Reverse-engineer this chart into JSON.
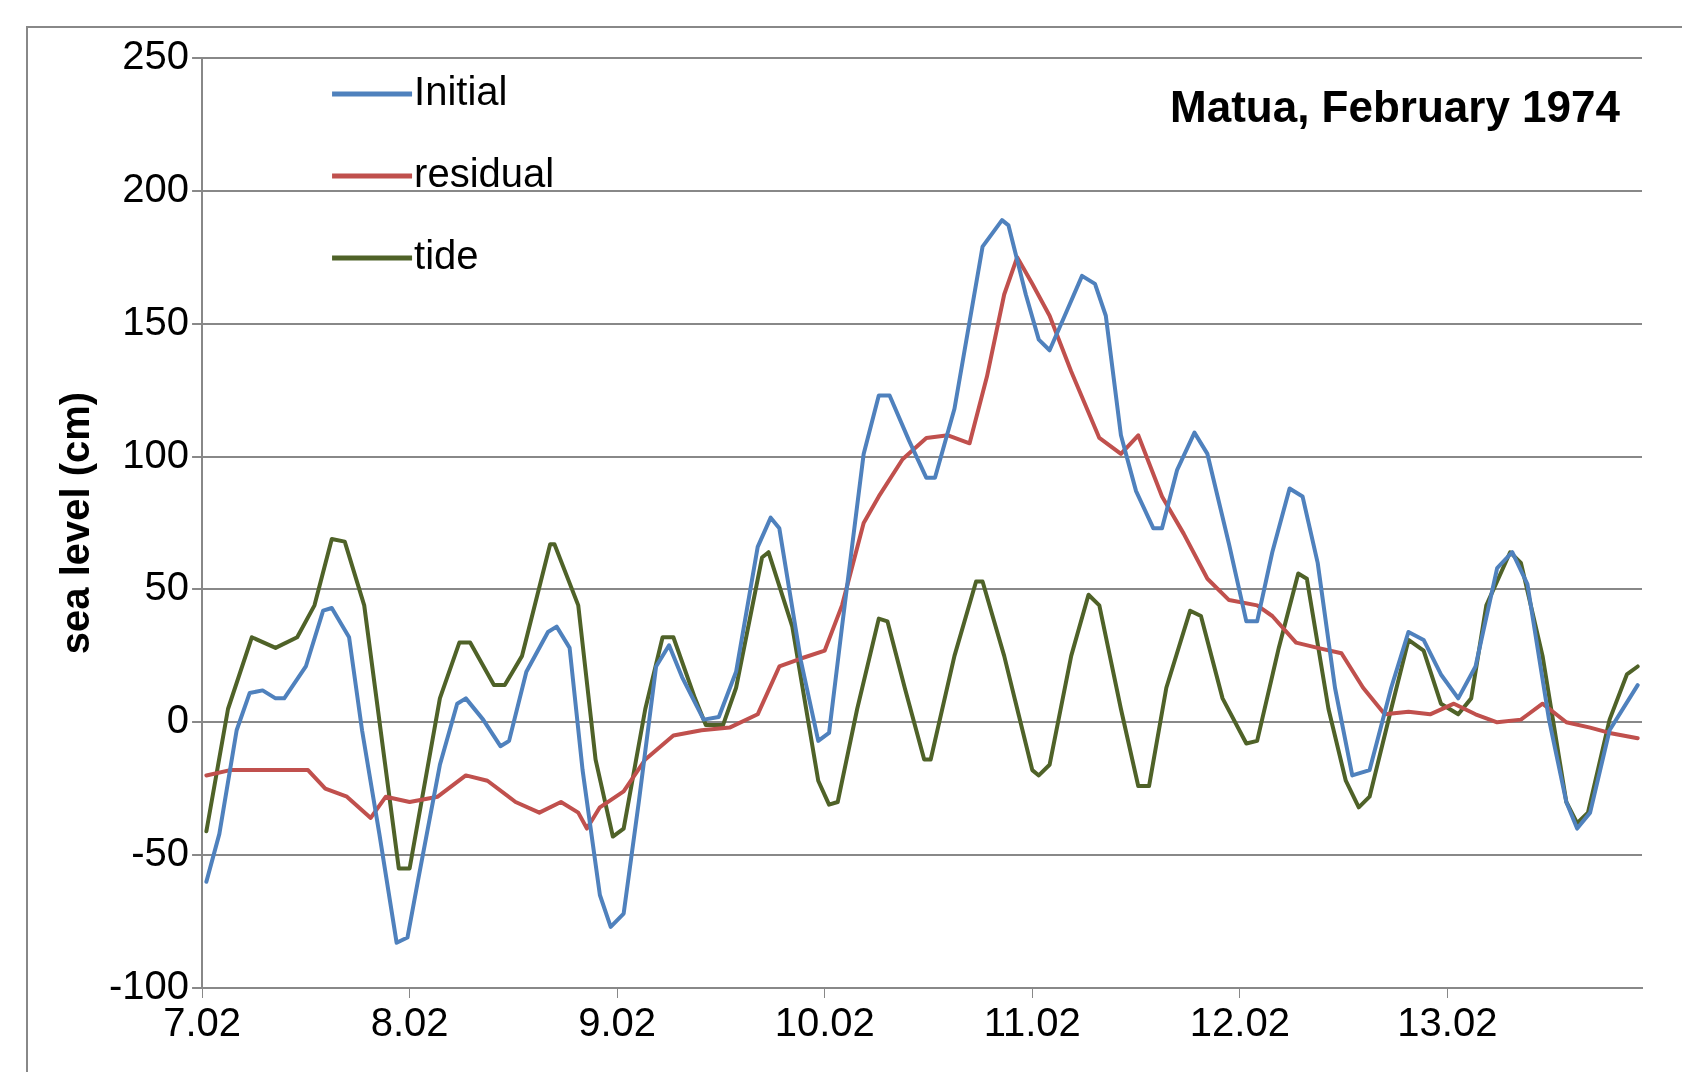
{
  "chart_data": {
    "type": "line",
    "title": "Matua, February 1974",
    "ylabel": "sea level (cm)",
    "ylim": [
      -100,
      250
    ],
    "yticks": [
      -100,
      -50,
      0,
      50,
      100,
      150,
      200,
      250
    ],
    "xlim": [
      "1974-02-07T00:00",
      "1974-02-13T22:30"
    ],
    "xticks": [
      {
        "value": "1974-02-07",
        "label": "7.02"
      },
      {
        "value": "1974-02-08",
        "label": "8.02"
      },
      {
        "value": "1974-02-09",
        "label": "9.02"
      },
      {
        "value": "1974-02-10",
        "label": "10.02"
      },
      {
        "value": "1974-02-11",
        "label": "11.02"
      },
      {
        "value": "1974-02-12",
        "label": "12.02"
      },
      {
        "value": "1974-02-13",
        "label": "13.02"
      }
    ],
    "grid": "y",
    "legend": "top left",
    "marker": "none",
    "line_style": "solid",
    "series": [
      {
        "name": "Initial",
        "color": "#4f81bd",
        "x": [
          "1974-02-07T00:30",
          "1974-02-07T02:00",
          "1974-02-07T04:00",
          "1974-02-07T05:30",
          "1974-02-07T07:00",
          "1974-02-07T08:30",
          "1974-02-07T09:30",
          "1974-02-07T12:00",
          "1974-02-07T14:00",
          "1974-02-07T15:00",
          "1974-02-07T17:00",
          "1974-02-07T18:30",
          "1974-02-07T20:30",
          "1974-02-07T22:30",
          "1974-02-07T23:45",
          "1974-02-08T01:00",
          "1974-02-08T03:30",
          "1974-02-08T05:30",
          "1974-02-08T06:30",
          "1974-02-08T08:30",
          "1974-02-08T10:30",
          "1974-02-08T11:30",
          "1974-02-08T13:30",
          "1974-02-08T16:00",
          "1974-02-08T17:00",
          "1974-02-08T18:30",
          "1974-02-08T20:00",
          "1974-02-08T22:00",
          "1974-02-08T23:15",
          "1974-02-09T00:45",
          "1974-02-09T02:30",
          "1974-02-09T04:30",
          "1974-02-09T06:00",
          "1974-02-09T07:30",
          "1974-02-09T10:00",
          "1974-02-09T11:45",
          "1974-02-09T13:45",
          "1974-02-09T16:15",
          "1974-02-09T17:45",
          "1974-02-09T18:45",
          "1974-02-09T21:15",
          "1974-02-09T23:15",
          "1974-02-10T00:30",
          "1974-02-10T02:00",
          "1974-02-10T04:30",
          "1974-02-10T06:15",
          "1974-02-10T07:30",
          "1974-02-10T09:45",
          "1974-02-10T11:45",
          "1974-02-10T12:45",
          "1974-02-10T15:00",
          "1974-02-10T18:15",
          "1974-02-10T20:30",
          "1974-02-10T21:15",
          "1974-02-10T23:15",
          "1974-02-11T00:45",
          "1974-02-11T02:00",
          "1974-02-11T03:45",
          "1974-02-11T05:45",
          "1974-02-11T07:15",
          "1974-02-11T08:30",
          "1974-02-11T10:15",
          "1974-02-11T12:00",
          "1974-02-11T14:00",
          "1974-02-11T15:00",
          "1974-02-11T16:45",
          "1974-02-11T18:45",
          "1974-02-11T20:15",
          "1974-02-11T22:45",
          "1974-02-12T00:45",
          "1974-02-12T02:00",
          "1974-02-12T03:45",
          "1974-02-12T05:45",
          "1974-02-12T07:15",
          "1974-02-12T09:00",
          "1974-02-12T11:00",
          "1974-02-12T13:00",
          "1974-02-12T15:00",
          "1974-02-12T17:30",
          "1974-02-12T19:30",
          "1974-02-12T21:15",
          "1974-02-12T23:15",
          "1974-02-13T01:15",
          "1974-02-13T03:15",
          "1974-02-13T05:45",
          "1974-02-13T07:30",
          "1974-02-13T09:15",
          "1974-02-13T11:45",
          "1974-02-13T13:45",
          "1974-02-13T15:00",
          "1974-02-13T16:30",
          "1974-02-13T18:45",
          "1974-02-13T22:00"
        ],
        "values": [
          -60,
          -42,
          -3,
          11,
          12,
          9,
          9,
          21,
          42,
          43,
          32,
          -3,
          -42,
          -83,
          -81,
          -59,
          -16,
          7,
          9,
          1,
          -9,
          -7,
          19,
          34,
          36,
          28,
          -18,
          -65,
          -77,
          -72,
          -30,
          21,
          29,
          17,
          1,
          2,
          19,
          66,
          77,
          73,
          23,
          -7,
          -4,
          36,
          101,
          123,
          123,
          106,
          92,
          92,
          118,
          179,
          189,
          187,
          161,
          144,
          140,
          153,
          168,
          165,
          153,
          108,
          87,
          73,
          73,
          95,
          109,
          101,
          67,
          38,
          38,
          64,
          88,
          85,
          60,
          13,
          -20,
          -18,
          13,
          34,
          31,
          18,
          9,
          21,
          58,
          64,
          52,
          1,
          -30,
          -40,
          -34,
          -3,
          14
        ]
      },
      {
        "name": "residual",
        "color": "#c0504d",
        "x": [
          "1974-02-07T00:30",
          "1974-02-07T03:15",
          "1974-02-07T07:15",
          "1974-02-07T12:15",
          "1974-02-07T14:15",
          "1974-02-07T16:45",
          "1974-02-07T19:30",
          "1974-02-07T21:15",
          "1974-02-08T00:00",
          "1974-02-08T03:15",
          "1974-02-08T06:30",
          "1974-02-08T09:00",
          "1974-02-08T12:15",
          "1974-02-08T15:00",
          "1974-02-08T17:30",
          "1974-02-08T19:30",
          "1974-02-08T20:30",
          "1974-02-08T22:00",
          "1974-02-09T00:45",
          "1974-02-09T03:15",
          "1974-02-09T06:30",
          "1974-02-09T09:45",
          "1974-02-09T13:00",
          "1974-02-09T16:15",
          "1974-02-09T18:45",
          "1974-02-09T21:15",
          "1974-02-10T00:00",
          "1974-02-10T02:00",
          "1974-02-10T04:30",
          "1974-02-10T06:15",
          "1974-02-10T09:00",
          "1974-02-10T11:45",
          "1974-02-10T14:15",
          "1974-02-10T16:45",
          "1974-02-10T18:45",
          "1974-02-10T20:45",
          "1974-02-10T22:15",
          "1974-02-11T00:00",
          "1974-02-11T02:00",
          "1974-02-11T04:30",
          "1974-02-11T07:45",
          "1974-02-11T10:15",
          "1974-02-11T12:15",
          "1974-02-11T15:00",
          "1974-02-11T17:30",
          "1974-02-11T20:15",
          "1974-02-11T22:45",
          "1974-02-12T02:00",
          "1974-02-12T03:45",
          "1974-02-12T06:30",
          "1974-02-12T09:00",
          "1974-02-12T11:45",
          "1974-02-12T14:15",
          "1974-02-12T16:45",
          "1974-02-12T19:30",
          "1974-02-12T22:00",
          "1974-02-13T00:45",
          "1974-02-13T03:15",
          "1974-02-13T05:45",
          "1974-02-13T08:30",
          "1974-02-13T11:00",
          "1974-02-13T13:45",
          "1974-02-13T16:30",
          "1974-02-13T18:45",
          "1974-02-13T22:00"
        ],
        "values": [
          -20,
          -18,
          -18,
          -18,
          -25,
          -28,
          -36,
          -28,
          -30,
          -28,
          -20,
          -22,
          -30,
          -34,
          -30,
          -34,
          -40,
          -32,
          -26,
          -14,
          -5,
          -3,
          -2,
          3,
          21,
          24,
          27,
          44,
          75,
          85,
          99,
          107,
          108,
          105,
          130,
          161,
          175,
          165,
          153,
          132,
          107,
          101,
          108,
          85,
          71,
          54,
          46,
          44,
          40,
          30,
          28,
          26,
          13,
          3,
          4,
          3,
          7,
          3,
          0,
          1,
          7,
          0,
          -2,
          -4,
          -6
        ]
      },
      {
        "name": "tide",
        "color": "#4f6228",
        "x": [
          "1974-02-07T00:30",
          "1974-02-07T03:00",
          "1974-02-07T05:45",
          "1974-02-07T08:30",
          "1974-02-07T11:00",
          "1974-02-07T13:00",
          "1974-02-07T15:00",
          "1974-02-07T16:30",
          "1974-02-07T18:45",
          "1974-02-07T22:45",
          "1974-02-08T00:00",
          "1974-02-08T03:30",
          "1974-02-08T05:45",
          "1974-02-08T07:00",
          "1974-02-08T09:45",
          "1974-02-08T11:00",
          "1974-02-08T13:00",
          "1974-02-08T16:15",
          "1974-02-08T16:45",
          "1974-02-08T19:30",
          "1974-02-08T21:30",
          "1974-02-08T23:30",
          "1974-02-09T00:45",
          "1974-02-09T03:15",
          "1974-02-09T05:15",
          "1974-02-09T06:30",
          "1974-02-09T09:00",
          "1974-02-09T10:15",
          "1974-02-09T12:15",
          "1974-02-09T13:45",
          "1974-02-09T16:45",
          "1974-02-09T17:30",
          "1974-02-09T20:15",
          "1974-02-09T23:15",
          "1974-02-10T00:30",
          "1974-02-10T01:30",
          "1974-02-10T03:45",
          "1974-02-10T06:15",
          "1974-02-10T07:15",
          "1974-02-10T09:15",
          "1974-02-10T11:30",
          "1974-02-10T12:15",
          "1974-02-10T15:00",
          "1974-02-10T17:30",
          "1974-02-10T18:15",
          "1974-02-10T20:45",
          "1974-02-11T00:00",
          "1974-02-11T00:45",
          "1974-02-11T02:00",
          "1974-02-11T04:30",
          "1974-02-11T06:30",
          "1974-02-11T07:45",
          "1974-02-11T10:15",
          "1974-02-11T12:15",
          "1974-02-11T13:30",
          "1974-02-11T15:30",
          "1974-02-11T18:15",
          "1974-02-11T19:30",
          "1974-02-11T22:00",
          "1974-02-12T00:45",
          "1974-02-12T02:00",
          "1974-02-12T04:30",
          "1974-02-12T06:45",
          "1974-02-12T07:45",
          "1974-02-12T10:15",
          "1974-02-12T12:15",
          "1974-02-12T13:45",
          "1974-02-12T15:00",
          "1974-02-12T17:30",
          "1974-02-12T19:30",
          "1974-02-12T21:15",
          "1974-02-12T23:15",
          "1974-02-13T01:15",
          "1974-02-13T02:45",
          "1974-02-13T04:30",
          "1974-02-13T07:15",
          "1974-02-13T08:30",
          "1974-02-13T11:00",
          "1974-02-13T13:45",
          "1974-02-13T15:00",
          "1974-02-13T16:15",
          "1974-02-13T18:45",
          "1974-02-13T20:45",
          "1974-02-13T22:00"
        ],
        "values": [
          -41,
          5,
          32,
          28,
          32,
          44,
          69,
          68,
          44,
          -55,
          -55,
          9,
          30,
          30,
          14,
          14,
          25,
          67,
          67,
          44,
          -14,
          -43,
          -40,
          5,
          32,
          32,
          9,
          -1,
          -1,
          13,
          62,
          64,
          36,
          -22,
          -31,
          -30,
          5,
          39,
          38,
          13,
          -14,
          -14,
          25,
          53,
          53,
          25,
          -18,
          -20,
          -16,
          25,
          48,
          44,
          5,
          -24,
          -24,
          13,
          42,
          40,
          9,
          -8,
          -7,
          28,
          56,
          54,
          5,
          -22,
          -32,
          -28,
          5,
          31,
          27,
          7,
          3,
          9,
          44,
          64,
          60,
          25,
          -30,
          -38,
          -34,
          1,
          18,
          21
        ]
      }
    ]
  }
}
